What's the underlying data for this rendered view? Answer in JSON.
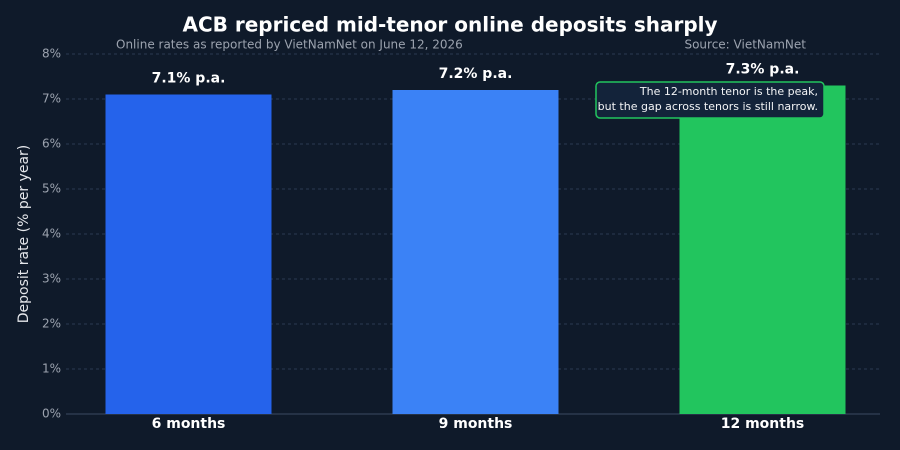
{
  "chart_data": {
    "type": "bar",
    "title": "ACB repriced mid-tenor online deposits sharply",
    "subtitle": "Online rates as reported by VietNamNet on June 12, 2026",
    "source": "Source: VietNamNet",
    "y_label": "Deposit rate (% per year)",
    "categories": [
      "6 months",
      "9 months",
      "12 months"
    ],
    "values": [
      7.1,
      7.2,
      7.3
    ],
    "value_labels": [
      "7.1% p.a.",
      "7.2% p.a.",
      "7.3% p.a."
    ],
    "colors": [
      "#2563eb",
      "#3b82f6",
      "#22c55e"
    ],
    "annotation": [
      "The 12-month tenor is the peak,",
      "but the gap across tenors is still narrow."
    ],
    "ylim": [
      0,
      8
    ],
    "yticks": [
      {
        "value": 0,
        "label": "0%"
      },
      {
        "value": 1,
        "label": "1%"
      },
      {
        "value": 2,
        "label": "2%"
      },
      {
        "value": 3,
        "label": "3%"
      },
      {
        "value": 4,
        "label": "4%"
      },
      {
        "value": 5,
        "label": "5%"
      },
      {
        "value": 6,
        "label": "6%"
      },
      {
        "value": 7,
        "label": "7%"
      },
      {
        "value": 8,
        "label": "8%"
      }
    ],
    "grid": true
  }
}
